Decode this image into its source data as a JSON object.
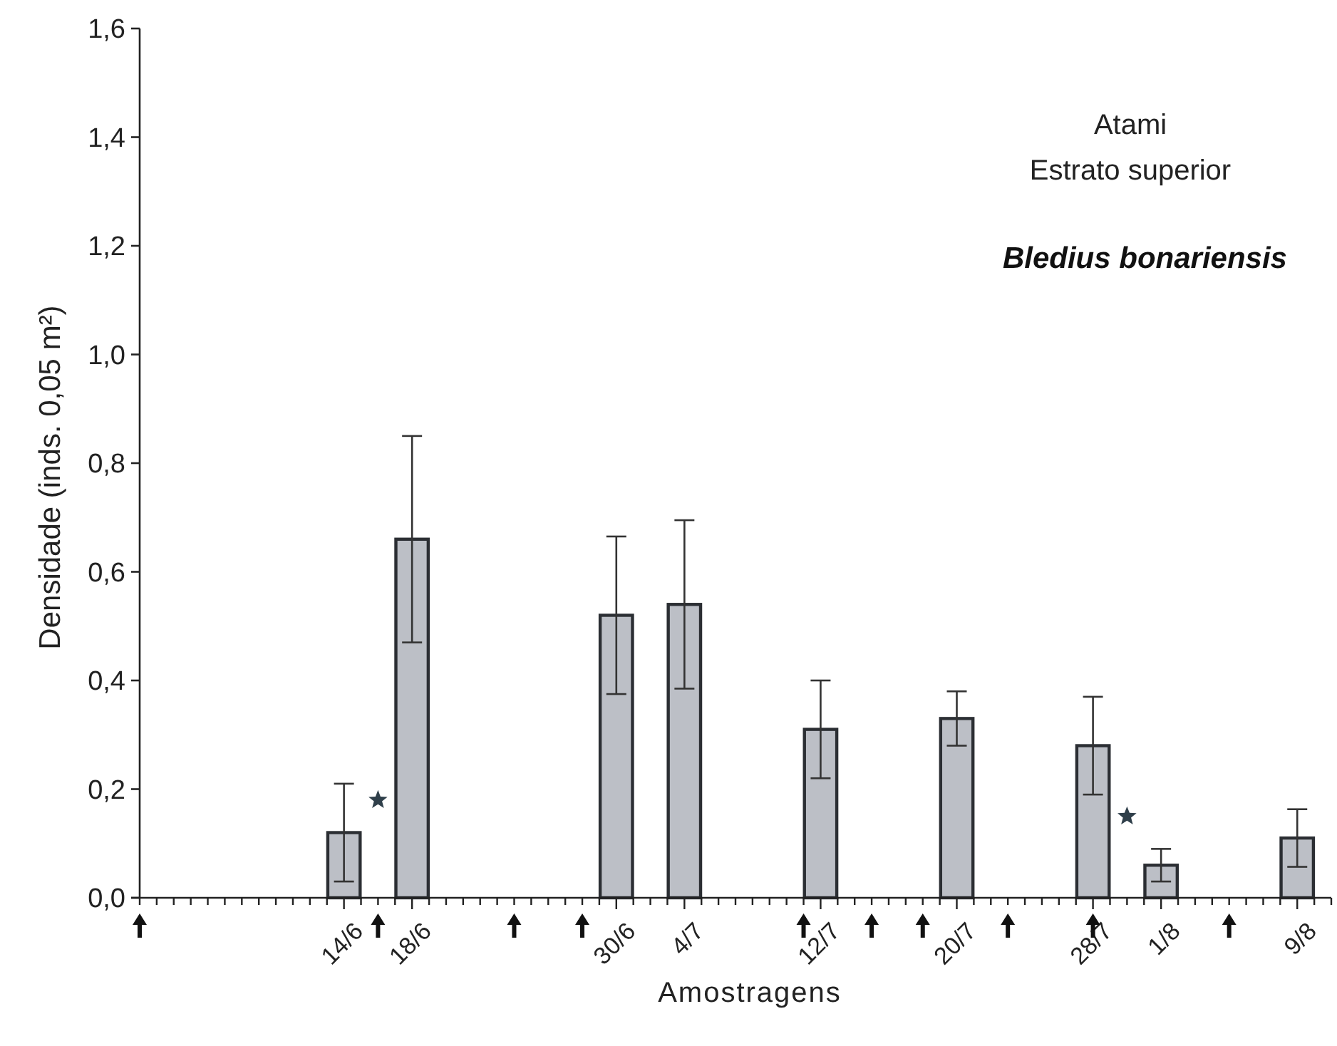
{
  "chart_data": {
    "type": "bar",
    "title": "Atami",
    "subtitle": "Estrato superior",
    "xlabel": "Amostragens",
    "ylabel": "Densidade (inds. 0,05 m²)",
    "x": [
      "--06-14",
      "--06-18",
      "--06-30",
      "--07-04",
      "--07-12",
      "--07-20",
      "--07-28",
      "--08-01",
      "--08-09"
    ],
    "series": [
      {
        "color": "#bcbfc6",
        "values": [
          0.12,
          0.66,
          0.52,
          0.54,
          0.31,
          0.33,
          0.28,
          0.06,
          0.11
        ],
        "errors": [
          0.09,
          0.19,
          0.145,
          0.155,
          0.09,
          0.05,
          0.09,
          0.03,
          0.053
        ]
      }
    ],
    "xlim": [
      "--06-02",
      "--08-11"
    ],
    "xticks": [
      {
        "value": "--06-02",
        "label": null
      },
      {
        "value": "--06-03",
        "label": null
      },
      {
        "value": "--06-04",
        "label": null
      },
      {
        "value": "--06-05",
        "label": null
      },
      {
        "value": "--06-06",
        "label": null
      },
      {
        "value": "--06-07",
        "label": null
      },
      {
        "value": "--06-08",
        "label": null
      },
      {
        "value": "--06-09",
        "label": null
      },
      {
        "value": "--06-10",
        "label": null
      },
      {
        "value": "--06-11",
        "label": null
      },
      {
        "value": "--06-12",
        "label": null
      },
      {
        "value": "--06-13",
        "label": null
      },
      {
        "value": "--06-14",
        "label": "14/6"
      },
      {
        "value": "--06-15",
        "label": null
      },
      {
        "value": "--06-16",
        "label": null
      },
      {
        "value": "--06-17",
        "label": null
      },
      {
        "value": "--06-18",
        "label": "18/6"
      },
      {
        "value": "--06-19",
        "label": null
      },
      {
        "value": "--06-20",
        "label": null
      },
      {
        "value": "--06-21",
        "label": null
      },
      {
        "value": "--06-22",
        "label": null
      },
      {
        "value": "--06-23",
        "label": null
      },
      {
        "value": "--06-24",
        "label": null
      },
      {
        "value": "--06-25",
        "label": null
      },
      {
        "value": "--06-26",
        "label": null
      },
      {
        "value": "--06-27",
        "label": null
      },
      {
        "value": "--06-28",
        "label": null
      },
      {
        "value": "--06-29",
        "label": null
      },
      {
        "value": "--06-30",
        "label": "30/6"
      },
      {
        "value": "--07-01",
        "label": null
      },
      {
        "value": "--07-02",
        "label": null
      },
      {
        "value": "--07-03",
        "label": null
      },
      {
        "value": "--07-04",
        "label": "4/7"
      },
      {
        "value": "--07-05",
        "label": null
      },
      {
        "value": "--07-06",
        "label": null
      },
      {
        "value": "--07-07",
        "label": null
      },
      {
        "value": "--07-08",
        "label": null
      },
      {
        "value": "--07-09",
        "label": null
      },
      {
        "value": "--07-10",
        "label": null
      },
      {
        "value": "--07-11",
        "label": null
      },
      {
        "value": "--07-12",
        "label": "12/7"
      },
      {
        "value": "--07-13",
        "label": null
      },
      {
        "value": "--07-14",
        "label": null
      },
      {
        "value": "--07-15",
        "label": null
      },
      {
        "value": "--07-16",
        "label": null
      },
      {
        "value": "--07-17",
        "label": null
      },
      {
        "value": "--07-18",
        "label": null
      },
      {
        "value": "--07-19",
        "label": null
      },
      {
        "value": "--07-20",
        "label": "20/7"
      },
      {
        "value": "--07-21",
        "label": null
      },
      {
        "value": "--07-22",
        "label": null
      },
      {
        "value": "--07-23",
        "label": null
      },
      {
        "value": "--07-24",
        "label": null
      },
      {
        "value": "--07-25",
        "label": null
      },
      {
        "value": "--07-26",
        "label": null
      },
      {
        "value": "--07-27",
        "label": null
      },
      {
        "value": "--07-28",
        "label": "28/7"
      },
      {
        "value": "--07-29",
        "label": null
      },
      {
        "value": "--07-30",
        "label": null
      },
      {
        "value": "--07-31",
        "label": null
      },
      {
        "value": "--08-01",
        "label": "1/8"
      },
      {
        "value": "--08-02",
        "label": null
      },
      {
        "value": "--08-03",
        "label": null
      },
      {
        "value": "--08-04",
        "label": null
      },
      {
        "value": "--08-05",
        "label": null
      },
      {
        "value": "--08-06",
        "label": null
      },
      {
        "value": "--08-07",
        "label": null
      },
      {
        "value": "--08-08",
        "label": null
      },
      {
        "value": "--08-09",
        "label": "9/8"
      },
      {
        "value": "--08-10",
        "label": null
      },
      {
        "value": "--08-11",
        "label": null
      }
    ],
    "ylim": [
      0,
      1.6
    ],
    "yticks": [
      {
        "value": 0,
        "label": "0,0"
      },
      {
        "value": 0.2,
        "label": "0,2"
      },
      {
        "value": 0.4,
        "label": "0,4"
      },
      {
        "value": 0.6,
        "label": "0,6"
      },
      {
        "value": 0.8,
        "label": "0,8"
      },
      {
        "value": 1.0,
        "label": "1,0"
      },
      {
        "value": 1.2,
        "label": "1,2"
      },
      {
        "value": 1.4,
        "label": "1,4"
      },
      {
        "value": 1.6,
        "label": "1,6"
      }
    ],
    "annotations": [
      "Bledius bonariensis"
    ]
  }
}
